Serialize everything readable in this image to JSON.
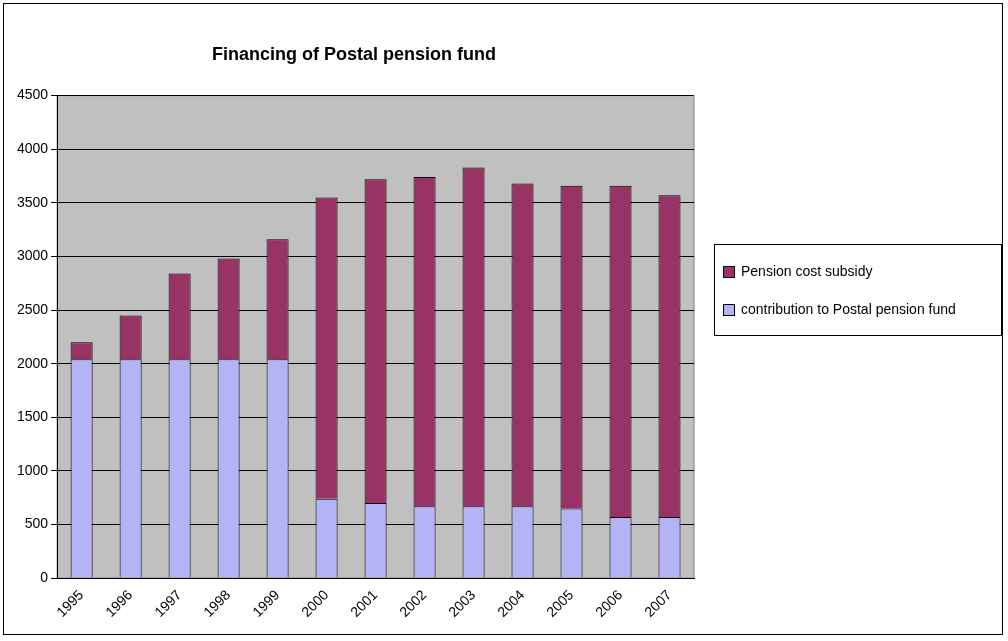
{
  "chart_data": {
    "type": "bar",
    "title": "Financing of Postal pension fund",
    "stacked": true,
    "categories": [
      "1995",
      "1996",
      "1997",
      "1998",
      "1999",
      "2000",
      "2001",
      "2002",
      "2003",
      "2004",
      "2005",
      "2006",
      "2007"
    ],
    "series": [
      {
        "name": "contribution to Postal pension fund",
        "color": "#b3b3f5",
        "values": [
          2040,
          2040,
          2040,
          2040,
          2040,
          740,
          700,
          670,
          670,
          670,
          650,
          570,
          570
        ]
      },
      {
        "name": "Pension cost subsidy",
        "color": "#993366",
        "values": [
          160,
          410,
          800,
          940,
          1120,
          2810,
          3020,
          3070,
          3160,
          3010,
          3010,
          3090,
          3000
        ]
      }
    ],
    "ylim": [
      0,
      4500
    ],
    "yticks": [
      0,
      500,
      1000,
      1500,
      2000,
      2500,
      3000,
      3500,
      4000,
      4500
    ],
    "grid": "y",
    "legend": "right"
  }
}
